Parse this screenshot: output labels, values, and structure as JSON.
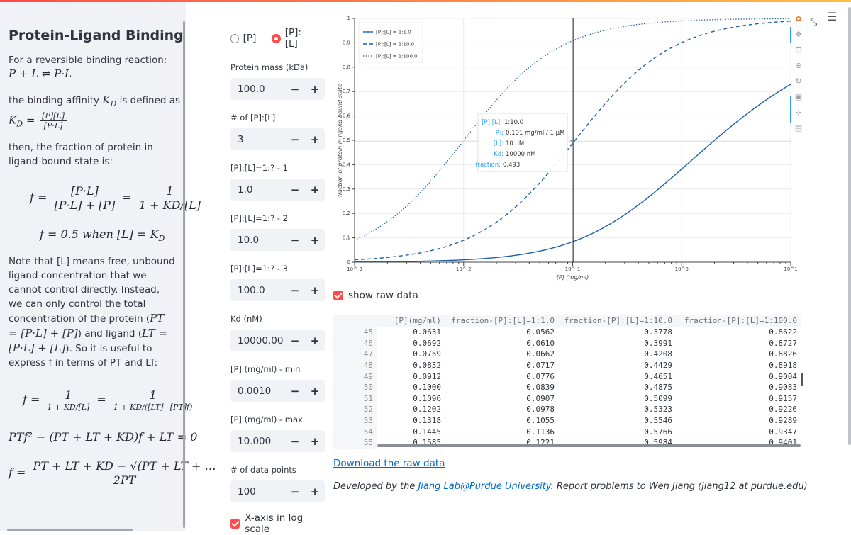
{
  "sidebar": {
    "title": "Protein-Ligand Binding",
    "intro": "For a reversible binding reaction:",
    "reaction": "P + L ⇌ P·L",
    "affinity_text_before": "the binding affinity ",
    "affinity_symbol": "K",
    "affinity_sub": "D",
    "affinity_text_after": " is defined as",
    "kd_eq_lhs": "K",
    "kd_eq_num": "[P][L]",
    "kd_eq_den": "[P·L]",
    "fraction_intro": "then, the fraction of protein in ligand-bound state is:",
    "f_eq_lhs": "f =",
    "f_eq_frac1_num": "[P·L]",
    "f_eq_frac1_den": "[P·L] + [P]",
    "f_eq_frac2_num": "1",
    "f_eq_frac2_den": "1 + KD/[L]",
    "half_eq": "f = 0.5 when [L] = K",
    "note_p1": "Note that [L] means free, unbound ligand concentration that we cannot control directly. Instead, we can only control the total concentration of the protein (",
    "note_pt": "PT = [P·L] + [P]",
    "note_p2": ") and ligand (",
    "note_lt": "LT = [P·L] + [L]",
    "note_p3": "). So it is useful to express f in terms of PT and LT:",
    "f2_num1": "1",
    "f2_den1": "1 + KD/[L]",
    "f2_num2": "1",
    "f2_den2": "1 + KD/([LT]−[PT]f)",
    "quad_eq": "PTf² − (PT + LT + KD)f + LT = 0",
    "sol_num": "PT + LT + KD − √(PT + LT + …",
    "sol_den": "2PT"
  },
  "controls": {
    "radio_p": "[P]",
    "radio_pl": "[P]:[L]",
    "fields": [
      {
        "label": "Protein mass (kDa)",
        "value": "100.0"
      },
      {
        "label": "# of [P]:[L]",
        "value": "3"
      },
      {
        "label": "[P]:[L]=1:? - 1",
        "value": "1.0"
      },
      {
        "label": "[P]:[L]=1:? - 2",
        "value": "10.0"
      },
      {
        "label": "[P]:[L]=1:? - 3",
        "value": "100.0"
      },
      {
        "label": "Kd (nM)",
        "value": "10000.00"
      },
      {
        "label": "[P] (mg/ml) - min",
        "value": "0.0010"
      },
      {
        "label": "[P] (mg/ml) - max",
        "value": "10.000"
      },
      {
        "label": "# of data points",
        "value": "100"
      }
    ],
    "minus": "−",
    "plus": "+",
    "log_scale_label": "X-axis in log scale"
  },
  "chart": {
    "ylabel": "fraction of protein in ligand-bound state",
    "xlabel": "[P] (mg/ml)",
    "xticks": [
      "10^-3",
      "10^-2",
      "10^-1",
      "10^0",
      "10^1"
    ],
    "yticks": [
      "0",
      "0.1",
      "0.2",
      "0.3",
      "0.4",
      "0.5",
      "0.6",
      "0.7",
      "0.8",
      "0.9",
      "1"
    ],
    "legend": [
      "[P]:[L] = 1:1.0",
      "[P]:[L] = 1:10.0",
      "[P]:[L] = 1:100.0"
    ],
    "tooltip": {
      "k1": "[P]:[L]:",
      "v1": "1:10.0",
      "k2": "[P]:",
      "v2": "0.101 mg/ml / 1 µM",
      "k3": "[L]:",
      "v3": "10 µM",
      "k4": "Kd:",
      "v4": "10000 nM",
      "k5": "fraction:",
      "v5": "0.493"
    },
    "line_color": "#1f5fa8"
  },
  "chart_data": {
    "type": "line",
    "title": "",
    "xlabel": "[P] (mg/ml)",
    "ylabel": "fraction of protein in ligand-bound state",
    "xscale": "log",
    "xlim": [
      0.001,
      10
    ],
    "ylim": [
      0,
      1
    ],
    "crosshair": {
      "x": 0.101,
      "y": 0.493
    },
    "series": [
      {
        "name": "[P]:[L] = 1:1.0",
        "ratio": 1.0,
        "style": "solid"
      },
      {
        "name": "[P]:[L] = 1:10.0",
        "ratio": 10.0,
        "style": "dashed"
      },
      {
        "name": "[P]:[L] = 1:100.0",
        "ratio": 100.0,
        "style": "dotted"
      }
    ],
    "kd_uM": 10,
    "protein_kda": 100
  },
  "show_raw_label": "show raw data",
  "table": {
    "columns": [
      "",
      "[P](mg/ml)",
      "fraction-[P]:[L]=1:1.0",
      "fraction-[P]:[L]=1:10.0",
      "fraction-[P]:[L]=1:100.0"
    ],
    "rows": [
      [
        "45",
        "0.0631",
        "0.0562",
        "0.3778",
        "0.8622"
      ],
      [
        "46",
        "0.0692",
        "0.0610",
        "0.3991",
        "0.8727"
      ],
      [
        "47",
        "0.0759",
        "0.0662",
        "0.4208",
        "0.8826"
      ],
      [
        "48",
        "0.0832",
        "0.0717",
        "0.4429",
        "0.8918"
      ],
      [
        "49",
        "0.0912",
        "0.0776",
        "0.4651",
        "0.9004"
      ],
      [
        "50",
        "0.1000",
        "0.0839",
        "0.4875",
        "0.9083"
      ],
      [
        "51",
        "0.1096",
        "0.0907",
        "0.5099",
        "0.9157"
      ],
      [
        "52",
        "0.1202",
        "0.0978",
        "0.5323",
        "0.9226"
      ],
      [
        "53",
        "0.1318",
        "0.1055",
        "0.5546",
        "0.9289"
      ],
      [
        "54",
        "0.1445",
        "0.1136",
        "0.5766",
        "0.9347"
      ],
      [
        "55",
        "0.1585",
        "0.1221",
        "0.5984",
        "0.9401"
      ]
    ]
  },
  "download_label": "Download the raw data",
  "footer": {
    "prefix": "Developed by the ",
    "link": "Jiang Lab@Purdue University",
    "suffix": ". Report problems to Wen Jiang (jiang12 at purdue.edu)"
  }
}
